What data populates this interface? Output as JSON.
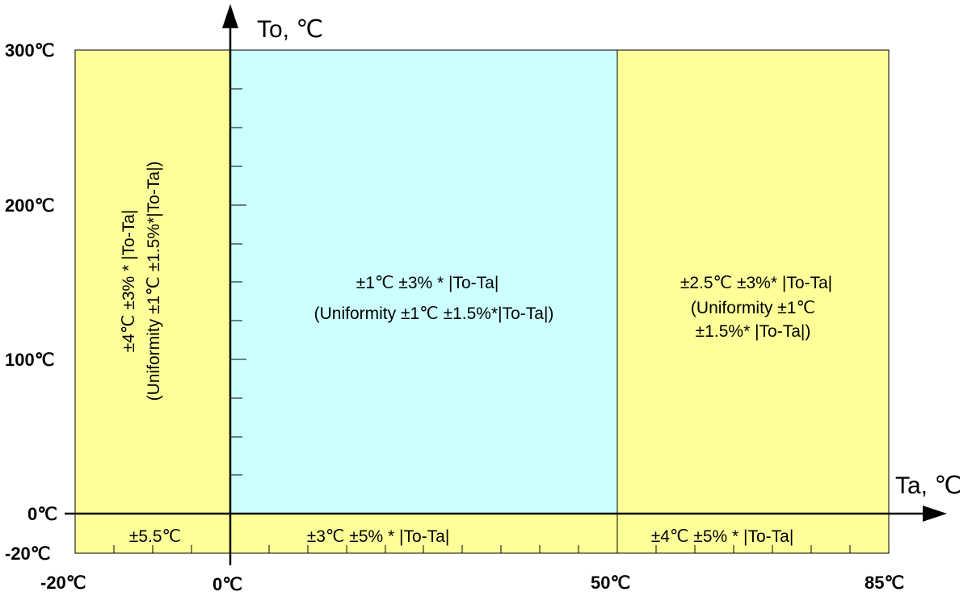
{
  "axes": {
    "y_title": "To, ℃",
    "x_title": "Ta, ℃",
    "y_ticks": [
      "300℃",
      "200℃",
      "100℃",
      "0℃",
      "-20℃"
    ],
    "x_ticks": [
      "-20℃",
      "0℃",
      "50℃",
      "85℃"
    ]
  },
  "zones": {
    "left_upper": {
      "line1": "±4℃ ±3% * |To-Ta|",
      "line2": "(Uniformity ±1℃ ±1.5%*|To-Ta|)"
    },
    "center_upper": {
      "line1": "±1℃ ±3% * |To-Ta|",
      "line2": "(Uniformity ±1℃ ±1.5%*|To-Ta|)"
    },
    "right_upper": {
      "line1": "±2.5℃ ±3%* |To-Ta|",
      "line2": "(Uniformity ±1℃",
      "line3": "±1.5%* |To-Ta|)"
    },
    "left_lower": {
      "line1": "±5.5℃"
    },
    "center_lower": {
      "line1": "±3℃ ±5% * |To-Ta|"
    },
    "right_lower": {
      "line1": "±4℃ ±5% * |To-Ta|"
    }
  },
  "colors": {
    "yellow_zone": "#ffff99",
    "cyan_zone": "#ccffff"
  }
}
